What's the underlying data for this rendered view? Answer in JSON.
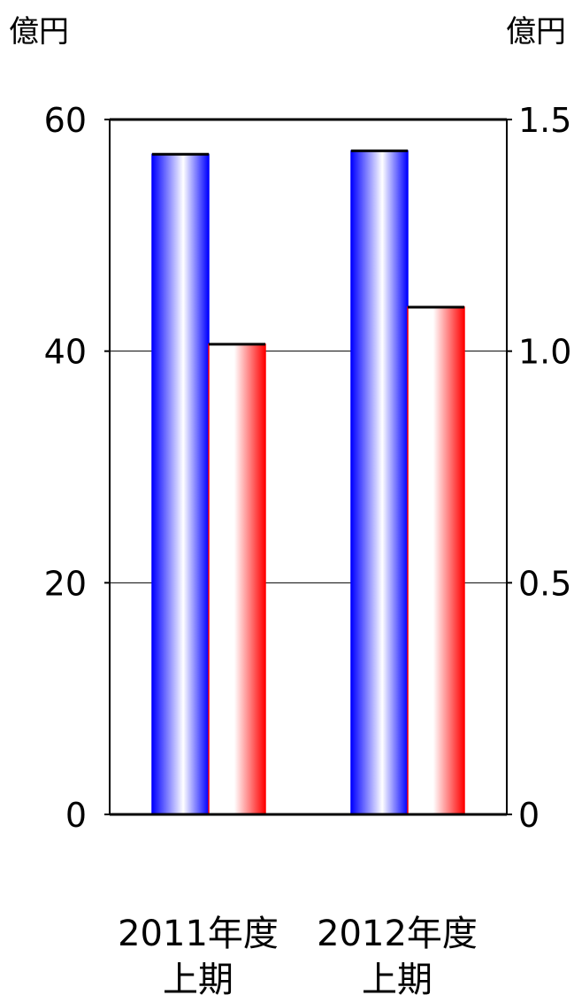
{
  "chart_data": {
    "type": "bar",
    "categories": [
      [
        "2011年度",
        "上期"
      ],
      [
        "2012年度",
        "上期"
      ]
    ],
    "series": [
      {
        "axis": "left",
        "values": [
          57.0,
          57.3
        ],
        "color": "#0000ff"
      },
      {
        "axis": "right",
        "values": [
          1.015,
          1.095
        ],
        "color": "#ff0000"
      }
    ],
    "y_left": {
      "label": "億円",
      "ylim": [
        0,
        60
      ],
      "ticks": [
        "0",
        "20",
        "40",
        "60"
      ],
      "tick_values": [
        0,
        20,
        40,
        60
      ]
    },
    "y_right": {
      "label": "億円",
      "ylim": [
        0,
        1.5
      ],
      "ticks": [
        "0",
        "0.5",
        "1.0",
        "1.5"
      ],
      "tick_values": [
        0,
        0.5,
        1.0,
        1.5
      ]
    },
    "grid": true,
    "legend": "none"
  }
}
